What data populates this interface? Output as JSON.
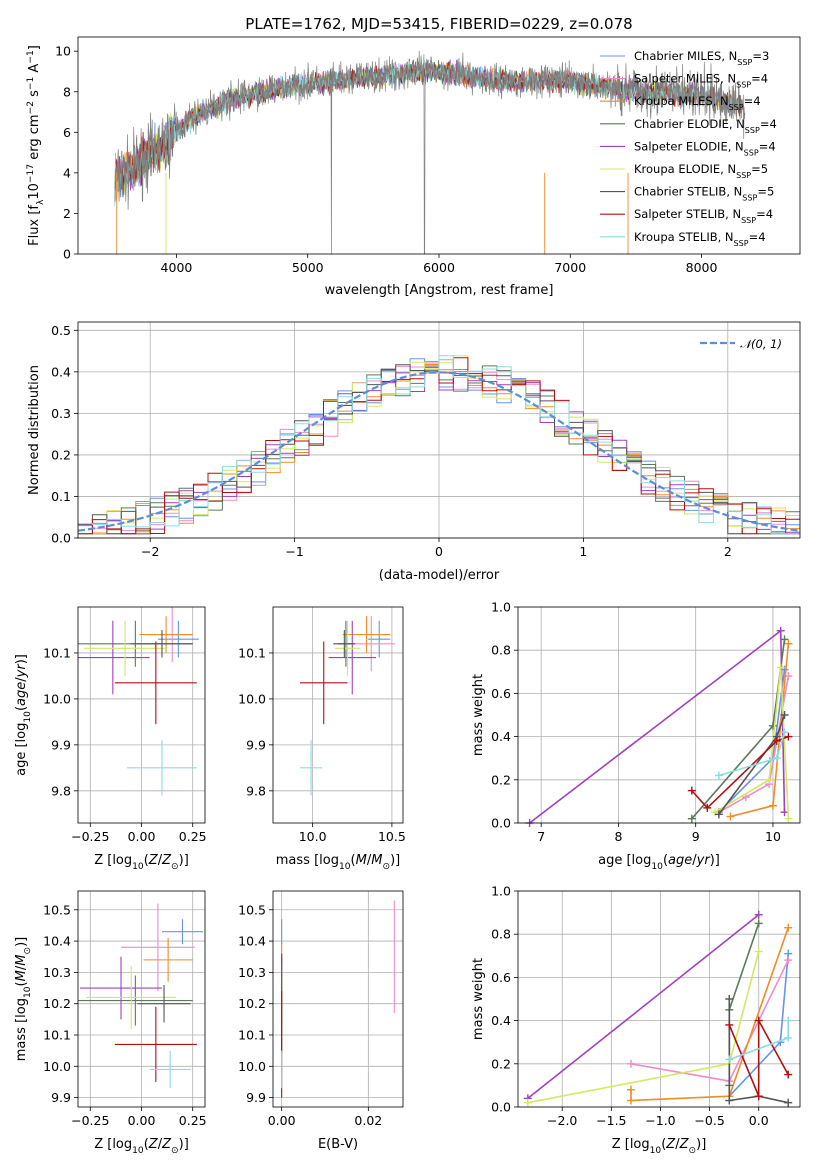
{
  "colors": {
    "chabrier_miles": "#6495ed",
    "salpeter_miles": "#f08cc8",
    "kroupa_miles": "#f28c28",
    "chabrier_elodie": "#5a7a5a",
    "salpeter_elodie": "#a040c0",
    "kroupa_elodie": "#d4e860",
    "chabrier_stelib": "#555555",
    "salpeter_stelib": "#b01010",
    "kroupa_stelib": "#88dde0",
    "data": "#808080",
    "normal": "#5a8fd8",
    "grid": "#b0b0b0"
  },
  "chart_data": [
    {
      "id": "spectrum",
      "type": "line",
      "title": "PLATE=1762, MJD=53415, FIBERID=0229, z=0.078",
      "xlabel": "wavelength [Angstrom, rest frame]",
      "ylabel": "Flux [f_λ10^-17 erg cm^-2 s^-1 A^-1]",
      "xlim": [
        3250,
        8750
      ],
      "ylim": [
        0,
        10.7
      ],
      "xticks": [
        "4000",
        "5000",
        "6000",
        "7000",
        "8000"
      ],
      "yticks": [
        "0",
        "2",
        "4",
        "6",
        "8",
        "10"
      ],
      "grid": false,
      "legend_position": "top-right",
      "series": [
        {
          "name": "Chabrier MILES, N_SSP=3",
          "color_key": "chabrier_miles"
        },
        {
          "name": "Salpeter MILES, N_SSP=4",
          "color_key": "salpeter_miles"
        },
        {
          "name": "Kroupa MILES, N_SSP=4",
          "color_key": "kroupa_miles"
        },
        {
          "name": "Chabrier ELODIE, N_SSP=4",
          "color_key": "chabrier_elodie"
        },
        {
          "name": "Salpeter ELODIE, N_SSP=4",
          "color_key": "salpeter_elodie"
        },
        {
          "name": "Kroupa ELODIE, N_SSP=5",
          "color_key": "kroupa_elodie"
        },
        {
          "name": "Chabrier STELIB, N_SSP=5",
          "color_key": "chabrier_stelib"
        },
        {
          "name": "Salpeter STELIB, N_SSP=4",
          "color_key": "salpeter_stelib"
        },
        {
          "name": "Kroupa STELIB, N_SSP=4",
          "color_key": "kroupa_stelib"
        }
      ],
      "continuum": {
        "x": [
          3530,
          3600,
          3700,
          3800,
          3900,
          4000,
          4100,
          4200,
          4400,
          4600,
          4800,
          5000,
          5200,
          5400,
          5600,
          5800,
          6000,
          6200,
          6400,
          6600,
          6800,
          7000,
          7200,
          7400,
          7600,
          7800,
          8000,
          8200,
          8300
        ],
        "y": [
          3.6,
          3.9,
          4.4,
          5.0,
          5.3,
          6.1,
          6.6,
          7.0,
          7.6,
          7.9,
          8.2,
          8.4,
          8.5,
          8.7,
          8.8,
          9.0,
          9.0,
          8.8,
          8.6,
          8.5,
          8.6,
          8.5,
          8.3,
          8.1,
          8.0,
          7.9,
          7.8,
          7.5,
          7.3
        ]
      }
    },
    {
      "id": "residuals",
      "type": "line",
      "xlabel": "(data-model)/error",
      "ylabel": "Normed distribution",
      "xlim": [
        -2.5,
        2.5
      ],
      "ylim": [
        0,
        0.52
      ],
      "xticks": [
        "−2",
        "−1",
        "0",
        "1",
        "2"
      ],
      "yticks": [
        "0.0",
        "0.1",
        "0.2",
        "0.3",
        "0.4",
        "0.5"
      ],
      "grid": true,
      "legend_position": "top-right",
      "legend_label": "𝒩(0, 1)",
      "bin_width": 0.1,
      "bin_start": -2.6
    },
    {
      "id": "z_age",
      "type": "scatter",
      "xlabel": "Z [log10(Z/Z⊙)]",
      "ylabel": "age [log10(age/yr)]",
      "xlim": [
        -0.31,
        0.31
      ],
      "ylim": [
        9.73,
        10.2
      ],
      "xticks": [
        "−0.25",
        "0.00",
        "0.25"
      ],
      "yticks": [
        "9.8",
        "9.9",
        "10.0",
        "10.1"
      ],
      "grid": true,
      "points": [
        {
          "c": "chabrier_miles",
          "x": 0.18,
          "dx": 0.1,
          "y": 10.13,
          "dy": 0.04
        },
        {
          "c": "salpeter_miles",
          "x": 0.15,
          "dx": 0.1,
          "y": 10.14,
          "dy": 0.06
        },
        {
          "c": "kroupa_miles",
          "x": 0.12,
          "dx": 0.13,
          "y": 10.14,
          "dy": 0.04
        },
        {
          "c": "chabrier_elodie",
          "x": -0.03,
          "dx": 0.28,
          "y": 10.12,
          "dy": 0.05
        },
        {
          "c": "salpeter_elodie",
          "x": -0.14,
          "dx": 0.18,
          "y": 10.09,
          "dy": 0.08
        },
        {
          "c": "kroupa_elodie",
          "x": -0.08,
          "dx": 0.2,
          "y": 10.11,
          "dy": 0.06
        },
        {
          "c": "chabrier_stelib",
          "x": 0.1,
          "dx": 0.15,
          "y": 10.12,
          "dy": 0.03
        },
        {
          "c": "salpeter_stelib",
          "x": 0.07,
          "dx": 0.2,
          "y": 10.035,
          "dy": 0.09
        },
        {
          "c": "kroupa_stelib",
          "x": 0.1,
          "dx": 0.17,
          "y": 9.85,
          "dy": 0.06
        }
      ]
    },
    {
      "id": "mass_age",
      "type": "scatter",
      "xlabel": "mass [log10(M/M⊙)]",
      "ylabel": "",
      "xlim": [
        9.75,
        10.57
      ],
      "ylim": [
        9.73,
        10.2
      ],
      "xticks": [
        "10.0",
        "10.5"
      ],
      "yticks": [
        "9.8",
        "9.9",
        "10.0",
        "10.1"
      ],
      "grid": true,
      "points": [
        {
          "c": "chabrier_miles",
          "x": 10.42,
          "dx": 0.07,
          "y": 10.13,
          "dy": 0.04
        },
        {
          "c": "salpeter_miles",
          "x": 10.37,
          "dx": 0.15,
          "y": 10.12,
          "dy": 0.06
        },
        {
          "c": "kroupa_miles",
          "x": 10.34,
          "dx": 0.15,
          "y": 10.14,
          "dy": 0.04
        },
        {
          "c": "chabrier_elodie",
          "x": 10.21,
          "dx": 0.05,
          "y": 10.12,
          "dy": 0.05
        },
        {
          "c": "salpeter_elodie",
          "x": 10.25,
          "dx": 0.15,
          "y": 10.09,
          "dy": 0.08
        },
        {
          "c": "kroupa_elodie",
          "x": 10.22,
          "dx": 0.08,
          "y": 10.11,
          "dy": 0.06
        },
        {
          "c": "chabrier_stelib",
          "x": 10.2,
          "dx": 0.07,
          "y": 10.12,
          "dy": 0.03
        },
        {
          "c": "salpeter_stelib",
          "x": 10.07,
          "dx": 0.15,
          "y": 10.035,
          "dy": 0.09
        },
        {
          "c": "kroupa_stelib",
          "x": 9.99,
          "dx": 0.07,
          "y": 9.85,
          "dy": 0.06
        }
      ]
    },
    {
      "id": "age_weight",
      "type": "line",
      "xlabel": "age [log10(age/yr)]",
      "ylabel": "mass weight",
      "xlim": [
        6.7,
        10.35
      ],
      "ylim": [
        0,
        1.0
      ],
      "xticks": [
        "7",
        "8",
        "9",
        "10"
      ],
      "yticks": [
        "0.0",
        "0.2",
        "0.4",
        "0.6",
        "0.8",
        "1.0"
      ],
      "grid": true,
      "series": [
        {
          "c": "chabrier_miles",
          "x": [
            9.3,
            10.0,
            10.15
          ],
          "y": [
            0.05,
            0.3,
            0.71
          ]
        },
        {
          "c": "salpeter_miles",
          "x": [
            9.3,
            9.65,
            9.95,
            10.2
          ],
          "y": [
            0.05,
            0.12,
            0.18,
            0.68
          ]
        },
        {
          "c": "kroupa_miles",
          "x": [
            9.45,
            10.0,
            10.2
          ],
          "y": [
            0.03,
            0.08,
            0.83
          ]
        },
        {
          "c": "chabrier_elodie",
          "x": [
            8.95,
            10.0,
            10.15
          ],
          "y": [
            0.02,
            0.45,
            0.85
          ]
        },
        {
          "c": "salpeter_elodie",
          "x": [
            6.85,
            10.1,
            10.15
          ],
          "y": [
            0.0,
            0.89,
            0.05
          ]
        },
        {
          "c": "kroupa_elodie",
          "x": [
            9.25,
            9.95,
            10.1,
            10.2
          ],
          "y": [
            0.05,
            0.2,
            0.72,
            0.02
          ]
        },
        {
          "c": "chabrier_stelib",
          "x": [
            9.3,
            10.05,
            10.15
          ],
          "y": [
            0.04,
            0.4,
            0.5
          ]
        },
        {
          "c": "salpeter_stelib",
          "x": [
            8.95,
            9.15,
            10.05,
            10.2
          ],
          "y": [
            0.15,
            0.07,
            0.38,
            0.4
          ]
        },
        {
          "c": "kroupa_stelib",
          "x": [
            9.3,
            10.05,
            10.15
          ],
          "y": [
            0.22,
            0.3,
            0.42
          ]
        }
      ]
    },
    {
      "id": "z_mass",
      "type": "scatter",
      "xlabel": "Z [log10(Z/Z⊙)]",
      "ylabel": "mass [log10(M/M⊙)]",
      "xlim": [
        -0.31,
        0.31
      ],
      "ylim": [
        9.87,
        10.56
      ],
      "xticks": [
        "−0.25",
        "0.00",
        "0.25"
      ],
      "yticks": [
        "9.9",
        "10.0",
        "10.1",
        "10.2",
        "10.3",
        "10.4",
        "10.5"
      ],
      "grid": true,
      "points": [
        {
          "c": "chabrier_miles",
          "x": 0.2,
          "dx": 0.1,
          "y": 10.43,
          "dy": 0.04
        },
        {
          "c": "salpeter_miles",
          "x": 0.08,
          "dx": 0.18,
          "y": 10.38,
          "dy": 0.14
        },
        {
          "c": "kroupa_miles",
          "x": 0.13,
          "dx": 0.12,
          "y": 10.34,
          "dy": 0.07
        },
        {
          "c": "chabrier_elodie",
          "x": -0.03,
          "dx": 0.28,
          "y": 10.21,
          "dy": 0.08
        },
        {
          "c": "salpeter_elodie",
          "x": -0.1,
          "dx": 0.2,
          "y": 10.25,
          "dy": 0.1
        },
        {
          "c": "kroupa_elodie",
          "x": -0.05,
          "dx": 0.22,
          "y": 10.22,
          "dy": 0.1
        },
        {
          "c": "chabrier_stelib",
          "x": 0.11,
          "dx": 0.13,
          "y": 10.2,
          "dy": 0.06
        },
        {
          "c": "salpeter_stelib",
          "x": 0.07,
          "dx": 0.2,
          "y": 10.07,
          "dy": 0.12
        },
        {
          "c": "kroupa_stelib",
          "x": 0.14,
          "dx": 0.1,
          "y": 9.99,
          "dy": 0.06
        }
      ]
    },
    {
      "id": "ebv_mass",
      "type": "scatter",
      "xlabel": "E(B-V)",
      "ylabel": "",
      "xlim": [
        -0.002,
        0.028
      ],
      "ylim": [
        9.87,
        10.56
      ],
      "xticks": [
        "0.00",
        "0.02"
      ],
      "yticks": [
        "9.9",
        "10.0",
        "10.1",
        "10.2",
        "10.3",
        "10.4",
        "10.5"
      ],
      "grid": true,
      "points": [
        {
          "c": "chabrier_miles",
          "x": 0.0,
          "dx": 0.0,
          "y": 10.43,
          "dy": 0.04
        },
        {
          "c": "salpeter_miles",
          "x": 0.026,
          "dx": 0.0,
          "y": 10.35,
          "dy": 0.18
        },
        {
          "c": "kroupa_miles",
          "x": 0.0,
          "dx": 0.0,
          "y": 10.34,
          "dy": 0.06
        },
        {
          "c": "chabrier_elodie",
          "x": 0.0,
          "dx": 0.0,
          "y": 10.21,
          "dy": 0.08
        },
        {
          "c": "salpeter_elodie",
          "x": 0.0,
          "dx": 0.0,
          "y": 10.25,
          "dy": 0.1
        },
        {
          "c": "kroupa_elodie",
          "x": 0.0,
          "dx": 0.0,
          "y": 10.22,
          "dy": 0.1
        },
        {
          "c": "chabrier_stelib",
          "x": 0.0,
          "dx": 0.0,
          "y": 10.2,
          "dy": 0.16
        },
        {
          "c": "salpeter_stelib",
          "x": 0.0,
          "dx": 0.0,
          "y": 10.07,
          "dy": 0.17
        },
        {
          "c": "kroupa_stelib",
          "x": 0.0,
          "dx": 0.0,
          "y": 9.99,
          "dy": 0.06
        }
      ]
    },
    {
      "id": "z_weight",
      "type": "line",
      "xlabel": "Z [log10(Z/Z⊙)]",
      "ylabel": "mass weight",
      "xlim": [
        -2.45,
        0.42
      ],
      "ylim": [
        0,
        1.0
      ],
      "xticks": [
        "−2.0",
        "−1.5",
        "−1.0",
        "−0.5",
        "0.0"
      ],
      "yticks": [
        "0.0",
        "0.2",
        "0.4",
        "0.6",
        "0.8",
        "1.0"
      ],
      "grid": true,
      "series": [
        {
          "c": "chabrier_miles",
          "x": [
            0.3,
            0.22,
            -0.3
          ],
          "y": [
            0.71,
            0.3,
            0.05
          ]
        },
        {
          "c": "salpeter_miles",
          "x": [
            0.3,
            -0.3,
            -1.3
          ],
          "y": [
            0.68,
            0.12,
            0.2
          ]
        },
        {
          "c": "kroupa_miles",
          "x": [
            0.3,
            -0.3,
            -1.3,
            -1.3
          ],
          "y": [
            0.83,
            0.05,
            0.03,
            0.08
          ]
        },
        {
          "c": "chabrier_elodie",
          "x": [
            0.0,
            -0.3,
            -0.3
          ],
          "y": [
            0.85,
            0.45,
            0.1
          ]
        },
        {
          "c": "salpeter_elodie",
          "x": [
            0.0,
            -2.35
          ],
          "y": [
            0.89,
            0.04
          ]
        },
        {
          "c": "kroupa_elodie",
          "x": [
            0.0,
            -0.3,
            -2.35
          ],
          "y": [
            0.72,
            0.2,
            0.02
          ]
        },
        {
          "c": "chabrier_stelib",
          "x": [
            0.3,
            0.0,
            -0.3,
            -0.3
          ],
          "y": [
            0.02,
            0.05,
            0.03,
            0.5
          ]
        },
        {
          "c": "salpeter_stelib",
          "x": [
            0.3,
            0.0,
            0.0,
            -0.3
          ],
          "y": [
            0.15,
            0.4,
            0.05,
            0.38
          ]
        },
        {
          "c": "kroupa_stelib",
          "x": [
            0.3,
            0.3,
            -0.3
          ],
          "y": [
            0.4,
            0.32,
            0.22
          ]
        }
      ]
    }
  ]
}
